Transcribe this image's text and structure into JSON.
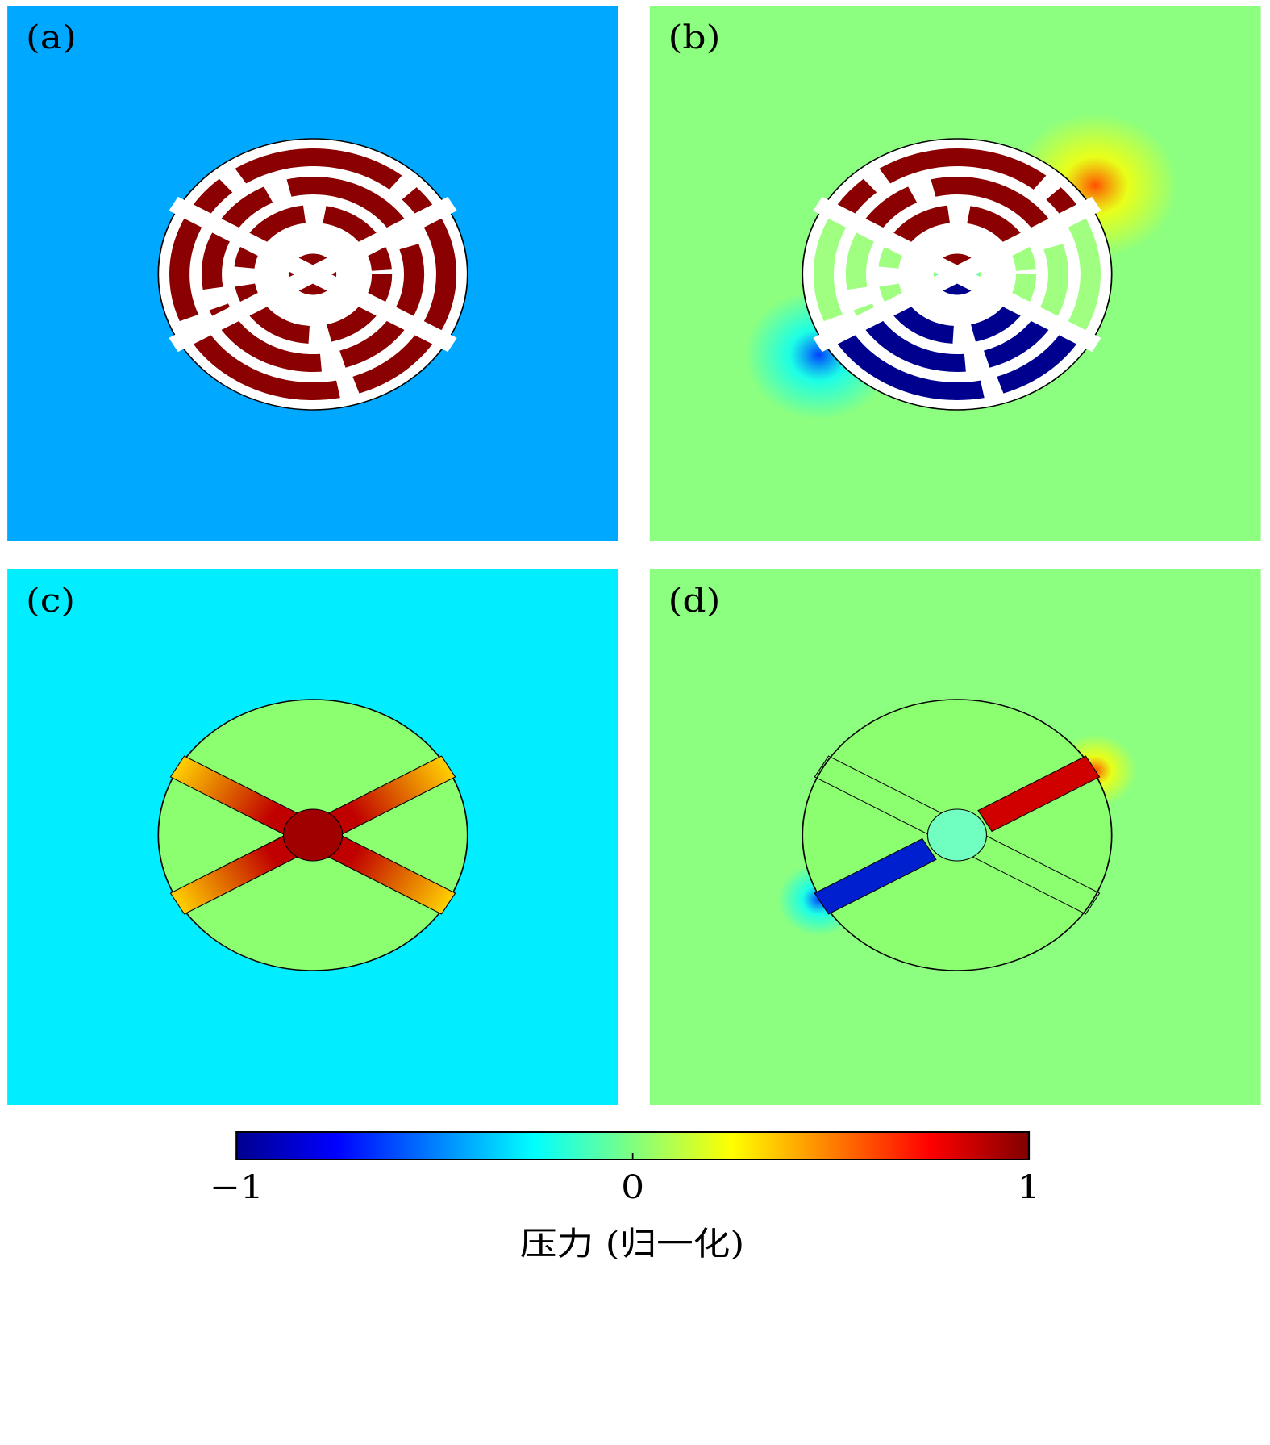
{
  "chart_data": {
    "type": "heatmap",
    "panel_labels": [
      "(a)",
      "(b)",
      "(c)",
      "(d)"
    ],
    "colorbar_label": "压力 (归一化)",
    "colorbar_lim": [
      -1,
      1
    ],
    "colorbar_ticks": [
      {
        "value": -1,
        "label": "−1"
      },
      0,
      1
    ]
  }
}
